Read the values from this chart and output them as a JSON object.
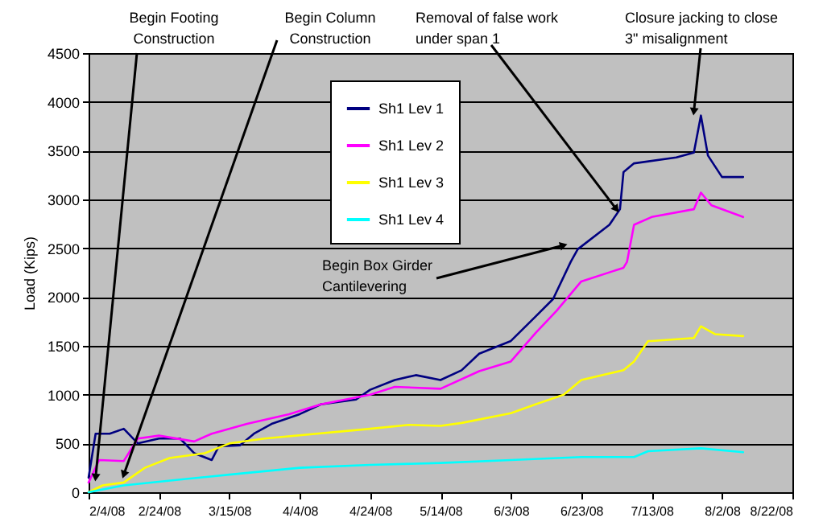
{
  "chart_data": {
    "type": "line",
    "ylabel": "Load (Kips)",
    "xlim": [
      "2008-02-04",
      "2008-08-22"
    ],
    "xticks": [
      {
        "value": "2008-02-04",
        "label": "2/4/08"
      },
      {
        "value": "2008-02-24",
        "label": "2/24/08"
      },
      {
        "value": "2008-03-15",
        "label": "3/15/08"
      },
      {
        "value": "2008-04-04",
        "label": "4/4/08"
      },
      {
        "value": "2008-04-24",
        "label": "4/24/08"
      },
      {
        "value": "2008-05-14",
        "label": "5/14/08"
      },
      {
        "value": "2008-06-03",
        "label": "6/3/08"
      },
      {
        "value": "2008-06-23",
        "label": "6/23/08"
      },
      {
        "value": "2008-07-13",
        "label": "7/13/08"
      },
      {
        "value": "2008-08-02",
        "label": "8/2/08"
      },
      {
        "value": "2008-08-22",
        "label": "8/22/08"
      }
    ],
    "ylim": [
      0,
      4500
    ],
    "yticks": [
      0,
      500,
      1000,
      1500,
      2000,
      2500,
      3000,
      3500,
      4000,
      4500
    ],
    "grid": "y",
    "legend": "top",
    "marker": "none",
    "line_style": "solid",
    "series": [
      {
        "name": "Sh1 Lev 1",
        "color": "#000080",
        "x": [
          "2008-02-04",
          "2008-02-06",
          "2008-02-10",
          "2008-02-14",
          "2008-02-18",
          "2008-02-24",
          "2008-03-01",
          "2008-03-05",
          "2008-03-10",
          "2008-03-12",
          "2008-03-18",
          "2008-03-22",
          "2008-03-27",
          "2008-04-04",
          "2008-04-10",
          "2008-04-20",
          "2008-04-24",
          "2008-05-01",
          "2008-05-07",
          "2008-05-14",
          "2008-05-20",
          "2008-05-25",
          "2008-06-03",
          "2008-06-10",
          "2008-06-15",
          "2008-06-20",
          "2008-06-22",
          "2008-07-01",
          "2008-07-04",
          "2008-07-05",
          "2008-07-08",
          "2008-07-20",
          "2008-07-25",
          "2008-07-27",
          "2008-07-29",
          "2008-08-02",
          "2008-08-08"
        ],
        "values": [
          150,
          600,
          600,
          650,
          500,
          550,
          550,
          400,
          330,
          470,
          480,
          600,
          700,
          800,
          900,
          950,
          1050,
          1150,
          1200,
          1150,
          1250,
          1420,
          1550,
          1800,
          1980,
          2360,
          2490,
          2740,
          2900,
          3280,
          3370,
          3430,
          3480,
          3860,
          3450,
          3230,
          3230
        ]
      },
      {
        "name": "Sh1 Lev 2",
        "color": "#ff00ff",
        "x": [
          "2008-02-04",
          "2008-02-07",
          "2008-02-14",
          "2008-02-18",
          "2008-02-24",
          "2008-03-05",
          "2008-03-10",
          "2008-03-20",
          "2008-04-01",
          "2008-04-10",
          "2008-04-24",
          "2008-05-01",
          "2008-05-14",
          "2008-05-25",
          "2008-06-03",
          "2008-06-10",
          "2008-06-16",
          "2008-06-23",
          "2008-07-05",
          "2008-07-06",
          "2008-07-08",
          "2008-07-13",
          "2008-07-25",
          "2008-07-27",
          "2008-07-30",
          "2008-08-08"
        ],
        "values": [
          100,
          330,
          320,
          550,
          580,
          520,
          600,
          700,
          800,
          900,
          1000,
          1080,
          1060,
          1240,
          1340,
          1630,
          1860,
          2160,
          2300,
          2360,
          2740,
          2820,
          2900,
          3070,
          2940,
          2820
        ]
      },
      {
        "name": "Sh1 Lev 3",
        "color": "#ffff00",
        "x": [
          "2008-02-04",
          "2008-02-08",
          "2008-02-14",
          "2008-02-20",
          "2008-02-27",
          "2008-03-08",
          "2008-03-15",
          "2008-03-25",
          "2008-04-24",
          "2008-05-05",
          "2008-05-14",
          "2008-05-20",
          "2008-06-03",
          "2008-06-10",
          "2008-06-18",
          "2008-06-23",
          "2008-07-05",
          "2008-07-08",
          "2008-07-12",
          "2008-07-13",
          "2008-07-25",
          "2008-07-27",
          "2008-07-31",
          "2008-08-08"
        ],
        "values": [
          0,
          70,
          100,
          250,
          350,
          400,
          500,
          550,
          650,
          690,
          680,
          710,
          810,
          900,
          1000,
          1150,
          1250,
          1340,
          1550,
          1550,
          1580,
          1700,
          1620,
          1600
        ]
      },
      {
        "name": "Sh1 Lev 4",
        "color": "#00ffff",
        "x": [
          "2008-02-04",
          "2008-02-14",
          "2008-03-01",
          "2008-03-15",
          "2008-04-04",
          "2008-04-24",
          "2008-05-14",
          "2008-06-03",
          "2008-06-23",
          "2008-07-08",
          "2008-07-12",
          "2008-07-27",
          "2008-08-08"
        ],
        "values": [
          0,
          70,
          130,
          180,
          250,
          280,
          300,
          330,
          360,
          360,
          420,
          450,
          410
        ]
      }
    ],
    "annotations": [
      {
        "text": "Begin Footing\nConstruction",
        "x": "2008-02-06",
        "y": 150
      },
      {
        "text": "Begin Column\nConstruction",
        "x": "2008-02-14",
        "y": 180
      },
      {
        "text": "Begin Box Girder\nCantilevering",
        "x": "2008-06-18",
        "y": 2530
      },
      {
        "text": "Removal of false work\nunder span 1",
        "x": "2008-07-03",
        "y": 2900
      },
      {
        "text": "Closure jacking to close\n3\" misalignment",
        "x": "2008-07-25",
        "y": 3900
      }
    ]
  }
}
